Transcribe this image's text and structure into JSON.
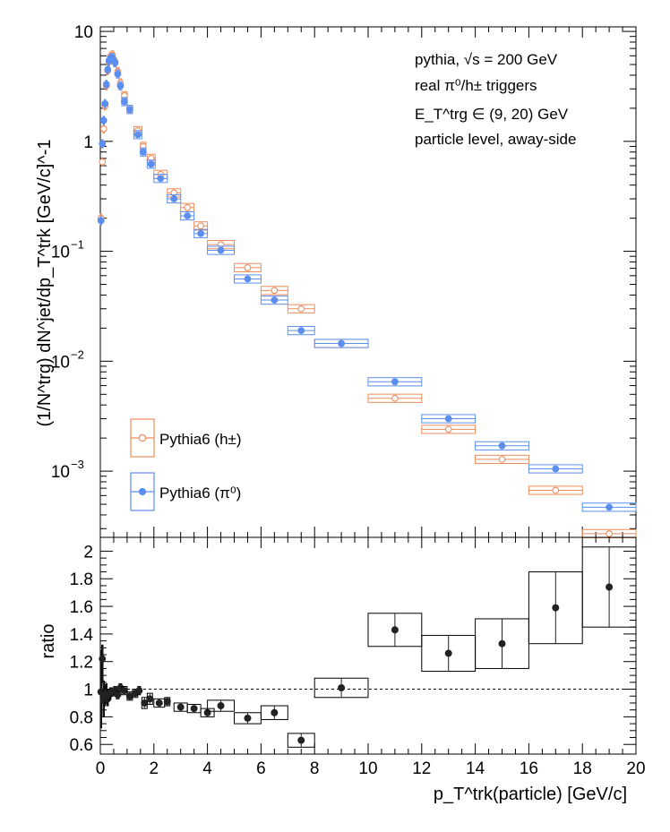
{
  "colors": {
    "hpm": "#f08c5a",
    "pi0": "#5a8ef0",
    "ratio": "#222222",
    "axis": "#000000"
  },
  "chart_data": [
    {
      "type": "scatter",
      "panel": "top",
      "yscale": "log",
      "xlim": [
        0,
        20
      ],
      "ylim": [
        0.00025,
        11
      ],
      "xlabel": "",
      "ylabel": "(1/N^trg) dN^jet/dp_T^trk [GeV/c]^-1",
      "annotations": [
        "pythia, √s = 200 GeV",
        "real π⁰/h± triggers",
        "E_T^trg ∈ (9, 20) GeV",
        "particle level, away-side"
      ],
      "legend_position": "bottom-left",
      "y_ticks": [
        {
          "v": 10,
          "label": "10"
        },
        {
          "v": 1,
          "label": "1"
        },
        {
          "v": 0.1,
          "label": "10",
          "exp": "−1"
        },
        {
          "v": 0.01,
          "label": "10",
          "exp": "−2"
        },
        {
          "v": 0.001,
          "label": "10",
          "exp": "−3"
        }
      ],
      "series": [
        {
          "name": "Pythia6 (h±)",
          "color": "hpm",
          "marker": "open-circle",
          "points": [
            {
              "x": 0.025,
              "y": 0.2,
              "xerr": 0.025
            },
            {
              "x": 0.075,
              "y": 0.65,
              "xerr": 0.025
            },
            {
              "x": 0.125,
              "y": 1.3,
              "xerr": 0.025
            },
            {
              "x": 0.175,
              "y": 2.1,
              "xerr": 0.025
            },
            {
              "x": 0.225,
              "y": 3.2,
              "xerr": 0.025
            },
            {
              "x": 0.275,
              "y": 4.4,
              "xerr": 0.025
            },
            {
              "x": 0.325,
              "y": 5.3,
              "xerr": 0.025
            },
            {
              "x": 0.375,
              "y": 5.9,
              "xerr": 0.025
            },
            {
              "x": 0.45,
              "y": 6.1,
              "xerr": 0.05
            },
            {
              "x": 0.55,
              "y": 5.3,
              "xerr": 0.05
            },
            {
              "x": 0.65,
              "y": 4.3,
              "xerr": 0.05
            },
            {
              "x": 0.75,
              "y": 3.4,
              "xerr": 0.05
            },
            {
              "x": 0.9,
              "y": 2.6,
              "xerr": 0.1
            },
            {
              "x": 1.1,
              "y": 1.95,
              "xerr": 0.1
            },
            {
              "x": 1.4,
              "y": 1.25,
              "xerr": 0.15
            },
            {
              "x": 1.6,
              "y": 0.9,
              "xerr": 0.1
            },
            {
              "x": 1.9,
              "y": 0.7,
              "xerr": 0.15
            },
            {
              "x": 2.25,
              "y": 0.5,
              "xerr": 0.25
            },
            {
              "x": 2.75,
              "y": 0.34,
              "xerr": 0.25
            },
            {
              "x": 3.25,
              "y": 0.25,
              "xerr": 0.25
            },
            {
              "x": 3.75,
              "y": 0.17,
              "xerr": 0.25
            },
            {
              "x": 4.5,
              "y": 0.115,
              "xerr": 0.5
            },
            {
              "x": 5.5,
              "y": 0.071,
              "xerr": 0.5
            },
            {
              "x": 6.5,
              "y": 0.044,
              "xerr": 0.5
            },
            {
              "x": 7.5,
              "y": 0.03,
              "xerr": 0.5
            },
            {
              "x": 9,
              "y": 0.0145,
              "xerr": 1
            },
            {
              "x": 11,
              "y": 0.0046,
              "xerr": 1
            },
            {
              "x": 13,
              "y": 0.0024,
              "xerr": 1
            },
            {
              "x": 15,
              "y": 0.00128,
              "xerr": 1
            },
            {
              "x": 17,
              "y": 0.00067,
              "xerr": 1
            },
            {
              "x": 19,
              "y": 0.00027,
              "xerr": 1
            }
          ]
        },
        {
          "name": "Pythia6 (π⁰)",
          "color": "pi0",
          "marker": "filled-circle",
          "points": [
            {
              "x": 0.025,
              "y": 0.19,
              "xerr": 0.025
            },
            {
              "x": 0.075,
              "y": 0.95,
              "xerr": 0.025
            },
            {
              "x": 0.125,
              "y": 1.55,
              "xerr": 0.025
            },
            {
              "x": 0.175,
              "y": 2.2,
              "xerr": 0.025
            },
            {
              "x": 0.225,
              "y": 3.3,
              "xerr": 0.025
            },
            {
              "x": 0.275,
              "y": 4.5,
              "xerr": 0.025
            },
            {
              "x": 0.325,
              "y": 5.4,
              "xerr": 0.025
            },
            {
              "x": 0.375,
              "y": 5.7,
              "xerr": 0.025
            },
            {
              "x": 0.45,
              "y": 5.8,
              "xerr": 0.05
            },
            {
              "x": 0.55,
              "y": 5.2,
              "xerr": 0.05
            },
            {
              "x": 0.65,
              "y": 4.1,
              "xerr": 0.05
            },
            {
              "x": 0.75,
              "y": 3.2,
              "xerr": 0.05
            },
            {
              "x": 0.9,
              "y": 2.3,
              "xerr": 0.1
            },
            {
              "x": 1.1,
              "y": 1.95,
              "xerr": 0.1
            },
            {
              "x": 1.4,
              "y": 1.15,
              "xerr": 0.15
            },
            {
              "x": 1.6,
              "y": 0.8,
              "xerr": 0.1
            },
            {
              "x": 1.9,
              "y": 0.62,
              "xerr": 0.15
            },
            {
              "x": 2.25,
              "y": 0.46,
              "xerr": 0.25
            },
            {
              "x": 2.75,
              "y": 0.3,
              "xerr": 0.25
            },
            {
              "x": 3.25,
              "y": 0.21,
              "xerr": 0.25
            },
            {
              "x": 3.75,
              "y": 0.145,
              "xerr": 0.25
            },
            {
              "x": 4.5,
              "y": 0.102,
              "xerr": 0.5
            },
            {
              "x": 5.5,
              "y": 0.056,
              "xerr": 0.5
            },
            {
              "x": 6.5,
              "y": 0.036,
              "xerr": 0.5
            },
            {
              "x": 7.5,
              "y": 0.019,
              "xerr": 0.5
            },
            {
              "x": 9,
              "y": 0.0145,
              "xerr": 1
            },
            {
              "x": 11,
              "y": 0.0065,
              "xerr": 1
            },
            {
              "x": 13,
              "y": 0.003,
              "xerr": 1
            },
            {
              "x": 15,
              "y": 0.0017,
              "xerr": 1
            },
            {
              "x": 17,
              "y": 0.00105,
              "xerr": 1
            },
            {
              "x": 19,
              "y": 0.00047,
              "xerr": 1
            }
          ]
        }
      ]
    },
    {
      "type": "scatter",
      "panel": "bottom",
      "xlim": [
        0,
        20
      ],
      "ylim": [
        0.53,
        2.1
      ],
      "xlabel": "p_T^trk(particle) [GeV/c]",
      "ylabel": "ratio",
      "x_ticks": [
        0,
        2,
        4,
        6,
        8,
        10,
        12,
        14,
        16,
        18,
        20
      ],
      "y_ticks": [
        0.6,
        0.8,
        1,
        1.2,
        1.4,
        1.6,
        1.8,
        2
      ],
      "reference_line": 1,
      "series": [
        {
          "name": "",
          "color": "ratio",
          "marker": "filled-circle",
          "points": [
            {
              "x": 0.025,
              "y": 0.98,
              "xerr": 0.025,
              "lo": 0.72,
              "hi": 1.28
            },
            {
              "x": 0.075,
              "y": 1.22,
              "xerr": 0.025,
              "lo": 1.05,
              "hi": 1.32
            },
            {
              "x": 0.125,
              "y": 0.92,
              "xerr": 0.025,
              "lo": 0.8,
              "hi": 1.06
            },
            {
              "x": 0.175,
              "y": 0.95,
              "xerr": 0.025,
              "lo": 0.88,
              "hi": 1.03
            },
            {
              "x": 0.225,
              "y": 0.97,
              "xerr": 0.025,
              "lo": 0.9,
              "hi": 1.04
            },
            {
              "x": 0.275,
              "y": 0.93,
              "xerr": 0.025,
              "lo": 0.88,
              "hi": 0.99
            },
            {
              "x": 0.325,
              "y": 0.96,
              "xerr": 0.025,
              "lo": 0.92,
              "hi": 1.0
            },
            {
              "x": 0.375,
              "y": 0.97,
              "xerr": 0.025,
              "lo": 0.93,
              "hi": 1.01
            },
            {
              "x": 0.45,
              "y": 0.98,
              "xerr": 0.05,
              "lo": 0.95,
              "hi": 1.01
            },
            {
              "x": 0.55,
              "y": 0.99,
              "xerr": 0.05,
              "lo": 0.96,
              "hi": 1.02
            },
            {
              "x": 0.65,
              "y": 0.96,
              "xerr": 0.05,
              "lo": 0.93,
              "hi": 0.99
            },
            {
              "x": 0.75,
              "y": 1.01,
              "xerr": 0.05,
              "lo": 0.98,
              "hi": 1.04
            },
            {
              "x": 0.9,
              "y": 0.99,
              "xerr": 0.1,
              "lo": 0.96,
              "hi": 1.02
            },
            {
              "x": 1.1,
              "y": 0.95,
              "xerr": 0.1,
              "lo": 0.92,
              "hi": 0.98
            },
            {
              "x": 1.3,
              "y": 0.97,
              "xerr": 0.1,
              "lo": 0.94,
              "hi": 1.0
            },
            {
              "x": 1.45,
              "y": 0.99,
              "xerr": 0.05,
              "lo": 0.96,
              "hi": 1.02
            },
            {
              "x": 1.65,
              "y": 0.9,
              "xerr": 0.1,
              "lo": 0.86,
              "hi": 0.94
            },
            {
              "x": 1.85,
              "y": 0.93,
              "xerr": 0.1,
              "lo": 0.89,
              "hi": 0.97
            },
            {
              "x": 2.2,
              "y": 0.9,
              "xerr": 0.2,
              "lo": 0.87,
              "hi": 0.93
            },
            {
              "x": 2.5,
              "y": 0.91,
              "xerr": 0.1,
              "lo": 0.88,
              "hi": 0.94
            },
            {
              "x": 3.0,
              "y": 0.87,
              "xerr": 0.25,
              "lo": 0.84,
              "hi": 0.9
            },
            {
              "x": 3.5,
              "y": 0.86,
              "xerr": 0.25,
              "lo": 0.83,
              "hi": 0.89
            },
            {
              "x": 4.0,
              "y": 0.83,
              "xerr": 0.25,
              "lo": 0.8,
              "hi": 0.86
            },
            {
              "x": 4.5,
              "y": 0.88,
              "xerr": 0.5,
              "lo": 0.84,
              "hi": 0.92
            },
            {
              "x": 5.5,
              "y": 0.79,
              "xerr": 0.5,
              "lo": 0.75,
              "hi": 0.83
            },
            {
              "x": 6.5,
              "y": 0.83,
              "xerr": 0.5,
              "lo": 0.78,
              "hi": 0.88
            },
            {
              "x": 7.5,
              "y": 0.63,
              "xerr": 0.5,
              "lo": 0.58,
              "hi": 0.68
            },
            {
              "x": 9,
              "y": 1.01,
              "xerr": 1,
              "lo": 0.94,
              "hi": 1.08
            },
            {
              "x": 11,
              "y": 1.43,
              "xerr": 1,
              "lo": 1.31,
              "hi": 1.55
            },
            {
              "x": 13,
              "y": 1.26,
              "xerr": 1,
              "lo": 1.13,
              "hi": 1.39
            },
            {
              "x": 15,
              "y": 1.33,
              "xerr": 1,
              "lo": 1.15,
              "hi": 1.51
            },
            {
              "x": 17,
              "y": 1.59,
              "xerr": 1,
              "lo": 1.33,
              "hi": 1.85
            },
            {
              "x": 19,
              "y": 1.74,
              "xerr": 1,
              "lo": 1.45,
              "hi": 2.03
            }
          ]
        }
      ]
    }
  ]
}
